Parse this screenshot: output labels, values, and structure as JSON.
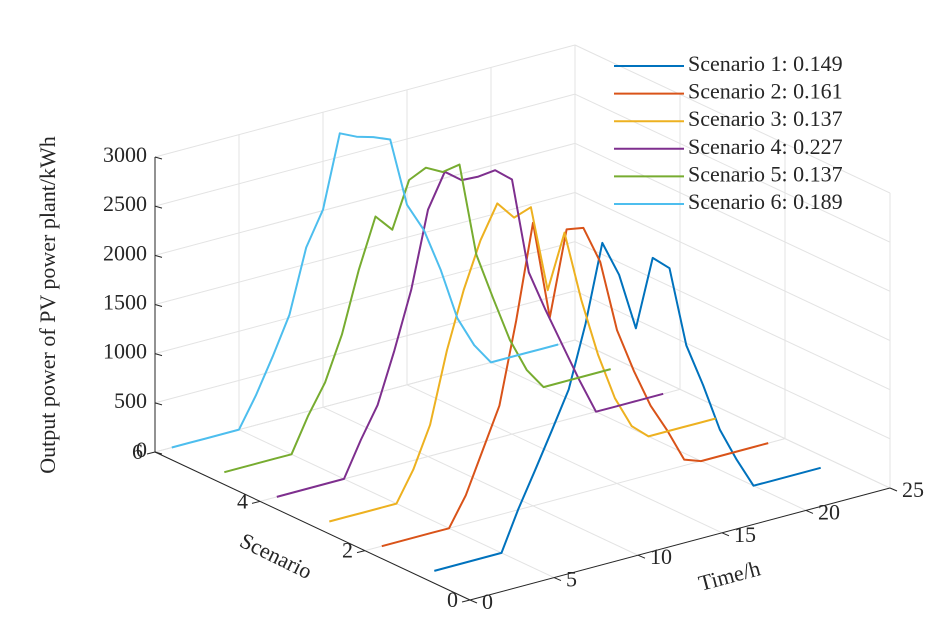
{
  "chart_data": {
    "type": "line3d",
    "xlabel": "Time/h",
    "ylabel": "Scenario",
    "zlabel": "Output power of PV power plant/kWh",
    "xlim": [
      0,
      25
    ],
    "xticks": [
      0,
      5,
      10,
      15,
      20,
      25
    ],
    "ylim": [
      0,
      6
    ],
    "yticks": [
      0,
      2,
      4,
      6
    ],
    "zlim": [
      0,
      3000
    ],
    "zticks": [
      0,
      500,
      1000,
      1500,
      2000,
      2500,
      3000
    ],
    "grid": true,
    "legend": "upper right",
    "x": [
      1,
      2,
      3,
      4,
      5,
      6,
      7,
      8,
      9,
      10,
      11,
      12,
      13,
      14,
      15,
      16,
      17,
      18,
      19,
      20,
      21,
      22,
      23,
      24
    ],
    "series": [
      {
        "name": "Scenario 1: 0.149",
        "color": "#0072BD",
        "scenario": 1,
        "values": [
          0,
          0,
          0,
          0,
          0,
          400,
          750,
          1110,
          1480,
          2100,
          2880,
          2510,
          1920,
          2590,
          2440,
          1610,
          1160,
          660,
          310,
          0,
          0,
          0,
          0,
          0
        ]
      },
      {
        "name": "Scenario 2: 0.161",
        "color": "#D95319",
        "scenario": 2,
        "values": [
          0,
          0,
          0,
          0,
          0,
          290,
          700,
          1110,
          1930,
          2880,
          1870,
          2720,
          2690,
          2300,
          1560,
          1100,
          700,
          400,
          60,
          0,
          0,
          0,
          0,
          0
        ]
      },
      {
        "name": "Scenario 3: 0.137",
        "color": "#EDB120",
        "scenario": 3,
        "values": [
          0,
          0,
          0,
          0,
          0,
          300,
          710,
          1420,
          1990,
          2450,
          2780,
          2590,
          2650,
          1760,
          2300,
          1570,
          965,
          480,
          150,
          0,
          0,
          0,
          0,
          0
        ]
      },
      {
        "name": "Scenario 4: 0.227",
        "color": "#7E2F8E",
        "scenario": 4,
        "values": [
          0,
          0,
          0,
          0,
          0,
          350,
          660,
          1170,
          1740,
          2510,
          2850,
          2720,
          2710,
          2730,
          2590,
          1600,
          1170,
          770,
          370,
          0,
          0,
          0,
          0,
          0
        ]
      },
      {
        "name": "Scenario 5: 0.137",
        "color": "#77AC30",
        "scenario": 5,
        "values": [
          0,
          0,
          0,
          0,
          0,
          350,
          640,
          1080,
          1690,
          2190,
          2010,
          2470,
          2550,
          2460,
          2490,
          1530,
          1040,
          570,
          220,
          0,
          0,
          0,
          0,
          0
        ]
      },
      {
        "name": "Scenario 6: 0.189",
        "color": "#4DBEEE",
        "scenario": 6,
        "values": [
          0,
          0,
          0,
          0,
          0,
          300,
          650,
          1030,
          1670,
          2010,
          2740,
          2660,
          2610,
          2540,
          1830,
          1530,
          1080,
          540,
          220,
          0,
          0,
          0,
          0,
          0
        ]
      }
    ]
  }
}
